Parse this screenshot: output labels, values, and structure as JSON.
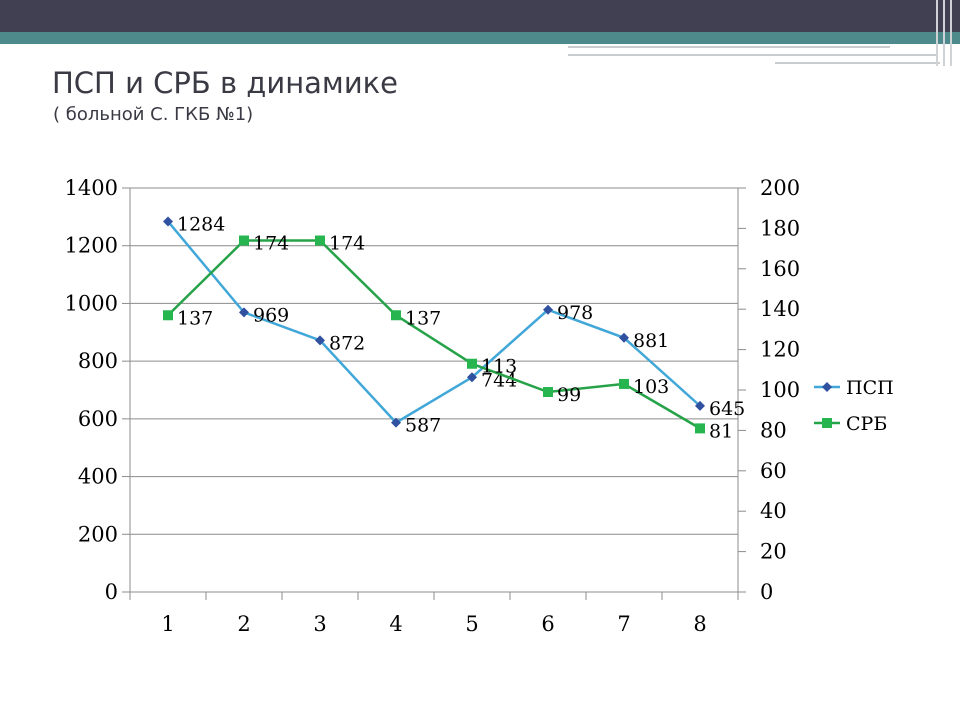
{
  "slide": {
    "title": "ПСП и СРБ в динамике",
    "subtitle": "( больной С. ГКБ №1)"
  },
  "colors": {
    "top_bar": "#414052",
    "accent_bar": "#4e8a8b",
    "psp_line": "#41a7d8",
    "psp_marker": "#3050a0",
    "srb_line": "#26a248",
    "srb_marker": "#27b550",
    "grid": "#8c8c8c"
  },
  "chart_data": {
    "type": "line",
    "categories": [
      "1",
      "2",
      "3",
      "4",
      "5",
      "6",
      "7",
      "8"
    ],
    "y_left": {
      "ylim": [
        0,
        1400
      ],
      "ticks": [
        "0",
        "200",
        "400",
        "600",
        "800",
        "1000",
        "1200",
        "1400"
      ]
    },
    "y_right": {
      "ylim": [
        0,
        200
      ],
      "ticks": [
        "0",
        "20",
        "40",
        "60",
        "80",
        "100",
        "120",
        "140",
        "160",
        "180",
        "200"
      ]
    },
    "grid": true,
    "legend_position": "right",
    "series": [
      {
        "name": "ПСП",
        "axis": "left",
        "values": [
          1284,
          969,
          872,
          587,
          744,
          978,
          881,
          645
        ],
        "labels": [
          "1284",
          "969",
          "872",
          "587",
          "744",
          "978",
          "881",
          "645"
        ],
        "marker": "diamond"
      },
      {
        "name": "СРБ",
        "axis": "right",
        "values": [
          137,
          174,
          174,
          137,
          113,
          99,
          103,
          81
        ],
        "labels": [
          "137",
          "174",
          "174",
          "137",
          "113",
          "99",
          "103",
          "81"
        ],
        "marker": "square"
      }
    ]
  }
}
